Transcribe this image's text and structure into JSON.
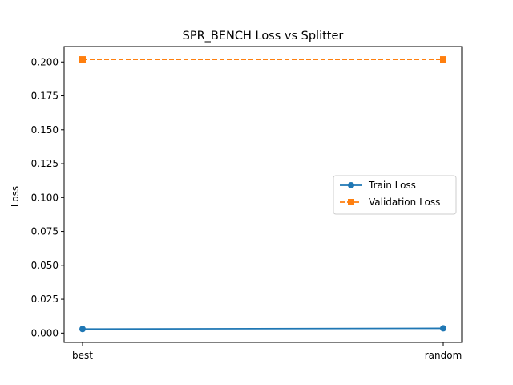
{
  "chart_data": {
    "type": "line",
    "title": "SPR_BENCH Loss vs Splitter",
    "xlabel": "",
    "ylabel": "Loss",
    "categories": [
      "best",
      "random"
    ],
    "ylim": [
      -0.0069,
      0.2114
    ],
    "yticks": [
      0.0,
      0.025,
      0.05,
      0.075,
      0.1,
      0.125,
      0.15,
      0.175,
      0.2
    ],
    "ytick_labels": [
      "0.000",
      "0.025",
      "0.050",
      "0.075",
      "0.100",
      "0.125",
      "0.150",
      "0.175",
      "0.200"
    ],
    "grid": false,
    "legend_position": "center-right",
    "series": [
      {
        "name": "Train Loss",
        "values": [
          0.003,
          0.0035
        ],
        "color": "#1f77b4",
        "marker": "circle",
        "linestyle": "solid"
      },
      {
        "name": "Validation Loss",
        "values": [
          0.2019,
          0.2019
        ],
        "color": "#ff7f0e",
        "marker": "square",
        "linestyle": "dashed"
      }
    ]
  }
}
